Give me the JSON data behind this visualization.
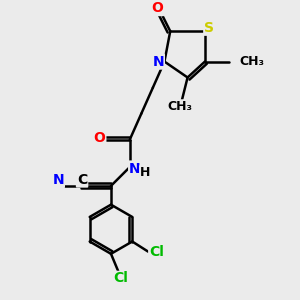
{
  "background_color": "#ebebeb",
  "atom_colors": {
    "C": "#000000",
    "N": "#0000ff",
    "O": "#ff0000",
    "S": "#cccc00",
    "Cl": "#00bb00",
    "H": "#000000"
  },
  "bond_color": "#000000",
  "bond_width": 1.8,
  "font_size_atom": 10,
  "font_size_small": 8
}
